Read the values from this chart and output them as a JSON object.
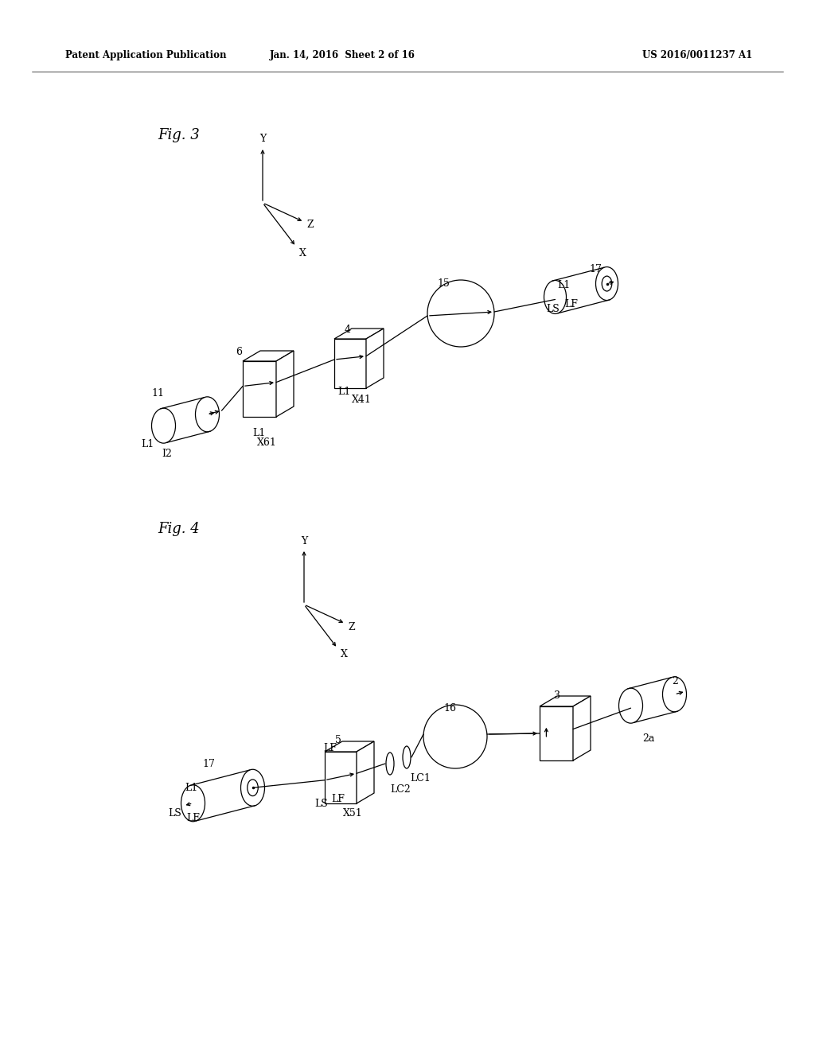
{
  "bg_color": "#ffffff",
  "header_left": "Patent Application Publication",
  "header_mid": "Jan. 14, 2016  Sheet 2 of 16",
  "header_right": "US 2016/0011237 A1",
  "fig3_label": "Fig. 3",
  "fig4_label": "Fig. 4",
  "lc": "#000000",
  "tc": "#000000",
  "lw": 0.9,
  "header_fs": 8.5,
  "label_fs": 13,
  "annot_fs": 8.5
}
